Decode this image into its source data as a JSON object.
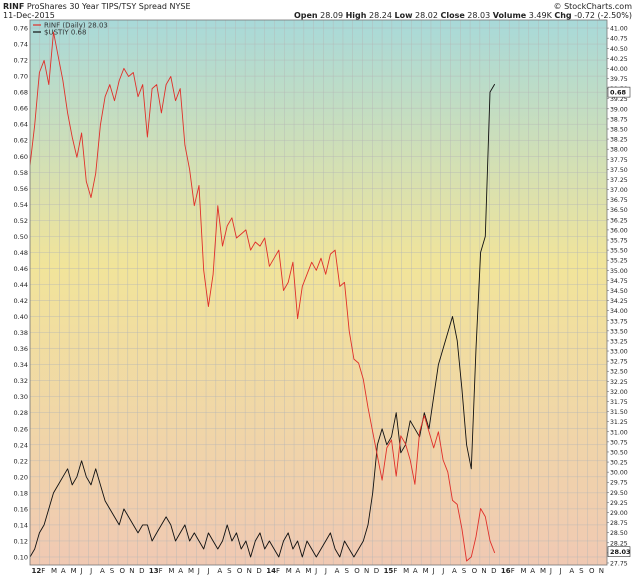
{
  "header": {
    "symbol": "RINF",
    "name": "ProShares 30 Year TIPS/TSY Spread NYSE",
    "date": "11-Dec-2015",
    "open_label": "Open",
    "open": "28.09",
    "high_label": "High",
    "high": "28.24",
    "low_label": "Low",
    "low": "28.02",
    "close_label": "Close",
    "close": "28.03",
    "volume_label": "Volume",
    "volume": "3.49K",
    "chg_label": "Chg",
    "chg": "-0.72 (-2.50%)",
    "brand": "© StockCharts.com"
  },
  "legend": {
    "series1": "RINF (Daily) 28.03",
    "series2": "$USTIY 0.68"
  },
  "colors": {
    "rinf": "#e0302a",
    "ustiy": "#111111",
    "bg_top": "#a8d9d9",
    "bg_mid": "#f1e49a",
    "bg_bottom": "#f0c9b3"
  },
  "chart_data": {
    "type": "line",
    "title": "RINF ProShares 30 Year TIPS/TSY Spread NYSE",
    "xlabel": "",
    "ylabel": "",
    "x_ticks": [
      "12",
      "F",
      "M",
      "A",
      "M",
      "J",
      "J",
      "A",
      "S",
      "O",
      "N",
      "D",
      "13",
      "F",
      "M",
      "A",
      "M",
      "J",
      "J",
      "A",
      "S",
      "O",
      "N",
      "D",
      "14",
      "F",
      "M",
      "A",
      "M",
      "J",
      "J",
      "A",
      "S",
      "O",
      "N",
      "D",
      "15",
      "F",
      "M",
      "A",
      "M",
      "J",
      "J",
      "A",
      "S",
      "O",
      "N",
      "D",
      "16",
      "F",
      "M",
      "A",
      "M",
      "J",
      "J",
      "A",
      "S",
      "O",
      "N"
    ],
    "x_range": [
      "2012-01",
      "2016-11"
    ],
    "left_axis": {
      "ylim": [
        0.09,
        0.77
      ],
      "ticks": [
        "0.10",
        "0.12",
        "0.14",
        "0.16",
        "0.18",
        "0.20",
        "0.22",
        "0.24",
        "0.26",
        "0.28",
        "0.30",
        "0.32",
        "0.34",
        "0.36",
        "0.38",
        "0.40",
        "0.42",
        "0.44",
        "0.46",
        "0.48",
        "0.50",
        "0.52",
        "0.54",
        "0.56",
        "0.58",
        "0.60",
        "0.62",
        "0.64",
        "0.66",
        "0.68",
        "0.70",
        "0.72",
        "0.74",
        "0.76"
      ]
    },
    "right_axis": {
      "ylim": [
        27.7,
        41.2
      ],
      "ticks": [
        "27.75",
        "28.00",
        "28.25",
        "28.50",
        "28.75",
        "29.00",
        "29.25",
        "29.50",
        "29.75",
        "30.00",
        "30.25",
        "30.50",
        "30.75",
        "31.00",
        "31.25",
        "31.50",
        "31.75",
        "32.00",
        "32.25",
        "32.50",
        "32.75",
        "33.00",
        "33.25",
        "33.50",
        "33.75",
        "34.00",
        "34.25",
        "34.50",
        "34.75",
        "35.00",
        "35.25",
        "35.50",
        "35.75",
        "36.00",
        "36.25",
        "36.50",
        "36.75",
        "37.00",
        "37.25",
        "37.50",
        "37.75",
        "38.00",
        "38.25",
        "38.50",
        "38.75",
        "39.00",
        "39.25",
        "39.50",
        "39.75",
        "40.00",
        "40.25",
        "40.50",
        "40.75",
        "41.00"
      ],
      "last_value_tag": "28.03"
    },
    "left_last_value_tag": "0.68",
    "grid": true,
    "series": [
      {
        "name": "$USTIY",
        "axis": "left",
        "x": [
          2012.0,
          2012.04,
          2012.08,
          2012.12,
          2012.16,
          2012.2,
          2012.24,
          2012.28,
          2012.32,
          2012.36,
          2012.4,
          2012.44,
          2012.48,
          2012.52,
          2012.56,
          2012.6,
          2012.64,
          2012.68,
          2012.72,
          2012.76,
          2012.8,
          2012.84,
          2012.88,
          2012.92,
          2012.96,
          2013.0,
          2013.04,
          2013.08,
          2013.12,
          2013.16,
          2013.2,
          2013.24,
          2013.28,
          2013.32,
          2013.36,
          2013.4,
          2013.44,
          2013.48,
          2013.52,
          2013.56,
          2013.6,
          2013.64,
          2013.68,
          2013.72,
          2013.76,
          2013.8,
          2013.84,
          2013.88,
          2013.92,
          2013.96,
          2014.0,
          2014.04,
          2014.08,
          2014.12,
          2014.16,
          2014.2,
          2014.24,
          2014.28,
          2014.32,
          2014.36,
          2014.4,
          2014.44,
          2014.48,
          2014.52,
          2014.56,
          2014.6,
          2014.64,
          2014.68,
          2014.72,
          2014.76,
          2014.8,
          2014.84,
          2014.88,
          2014.92,
          2014.96,
          2015.0,
          2015.04,
          2015.08,
          2015.12,
          2015.16,
          2015.2,
          2015.24,
          2015.28,
          2015.32,
          2015.36,
          2015.4,
          2015.44,
          2015.48,
          2015.52,
          2015.56,
          2015.6,
          2015.64,
          2015.68,
          2015.72,
          2015.76,
          2015.8,
          2015.84,
          2015.88,
          2015.92,
          2015.96
        ],
        "values": [
          0.1,
          0.11,
          0.13,
          0.14,
          0.16,
          0.18,
          0.19,
          0.2,
          0.21,
          0.19,
          0.2,
          0.22,
          0.2,
          0.19,
          0.21,
          0.19,
          0.17,
          0.16,
          0.15,
          0.14,
          0.16,
          0.15,
          0.14,
          0.13,
          0.14,
          0.14,
          0.12,
          0.13,
          0.14,
          0.15,
          0.14,
          0.12,
          0.13,
          0.14,
          0.12,
          0.13,
          0.12,
          0.11,
          0.13,
          0.12,
          0.11,
          0.12,
          0.14,
          0.12,
          0.13,
          0.11,
          0.12,
          0.1,
          0.12,
          0.13,
          0.11,
          0.12,
          0.11,
          0.1,
          0.12,
          0.13,
          0.11,
          0.12,
          0.1,
          0.12,
          0.11,
          0.1,
          0.11,
          0.12,
          0.13,
          0.11,
          0.1,
          0.12,
          0.11,
          0.1,
          0.11,
          0.12,
          0.14,
          0.18,
          0.24,
          0.26,
          0.24,
          0.25,
          0.28,
          0.23,
          0.24,
          0.27,
          0.26,
          0.25,
          0.28,
          0.26,
          0.3,
          0.34,
          0.36,
          0.38,
          0.4,
          0.37,
          0.31,
          0.24,
          0.21,
          0.36,
          0.48,
          0.5,
          0.68,
          0.69
        ]
      },
      {
        "name": "RINF",
        "axis": "right",
        "x": [
          2012.0,
          2012.04,
          2012.08,
          2012.12,
          2012.16,
          2012.2,
          2012.24,
          2012.28,
          2012.32,
          2012.36,
          2012.4,
          2012.44,
          2012.48,
          2012.52,
          2012.56,
          2012.6,
          2012.64,
          2012.68,
          2012.72,
          2012.76,
          2012.8,
          2012.84,
          2012.88,
          2012.92,
          2012.96,
          2013.0,
          2013.04,
          2013.08,
          2013.12,
          2013.16,
          2013.2,
          2013.24,
          2013.28,
          2013.32,
          2013.36,
          2013.4,
          2013.44,
          2013.48,
          2013.52,
          2013.56,
          2013.6,
          2013.64,
          2013.68,
          2013.72,
          2013.76,
          2013.8,
          2013.84,
          2013.88,
          2013.92,
          2013.96,
          2014.0,
          2014.04,
          2014.08,
          2014.12,
          2014.16,
          2014.2,
          2014.24,
          2014.28,
          2014.32,
          2014.36,
          2014.4,
          2014.44,
          2014.48,
          2014.52,
          2014.56,
          2014.6,
          2014.64,
          2014.68,
          2014.72,
          2014.76,
          2014.8,
          2014.84,
          2014.88,
          2014.92,
          2014.96,
          2015.0,
          2015.04,
          2015.08,
          2015.12,
          2015.16,
          2015.2,
          2015.24,
          2015.28,
          2015.32,
          2015.36,
          2015.4,
          2015.44,
          2015.48,
          2015.52,
          2015.56,
          2015.6,
          2015.64,
          2015.68,
          2015.72,
          2015.76,
          2015.8,
          2015.84,
          2015.88,
          2015.92,
          2015.96
        ],
        "values": [
          37.6,
          38.6,
          39.9,
          40.2,
          39.6,
          40.9,
          40.3,
          39.7,
          38.9,
          38.3,
          37.8,
          38.4,
          37.2,
          36.8,
          37.4,
          38.6,
          39.3,
          39.6,
          39.2,
          39.7,
          40.0,
          39.8,
          39.9,
          39.3,
          39.6,
          38.3,
          39.5,
          39.6,
          38.9,
          39.6,
          39.8,
          39.2,
          39.5,
          38.1,
          37.5,
          36.6,
          37.1,
          35.0,
          34.1,
          34.9,
          36.6,
          35.6,
          36.1,
          36.3,
          35.8,
          35.9,
          36.0,
          35.5,
          35.7,
          35.6,
          35.8,
          35.1,
          35.3,
          35.5,
          34.5,
          34.7,
          35.2,
          33.8,
          34.6,
          34.9,
          35.2,
          35.0,
          35.3,
          34.9,
          35.4,
          35.5,
          34.6,
          34.7,
          33.5,
          32.8,
          32.7,
          32.3,
          31.6,
          31.0,
          30.4,
          29.8,
          30.6,
          30.8,
          29.9,
          30.9,
          30.7,
          30.3,
          29.7,
          31.0,
          31.4,
          31.0,
          30.6,
          31.0,
          30.3,
          30.0,
          29.3,
          29.2,
          28.6,
          27.8,
          27.9,
          28.4,
          29.1,
          28.9,
          28.3,
          28.0
        ]
      }
    ]
  }
}
